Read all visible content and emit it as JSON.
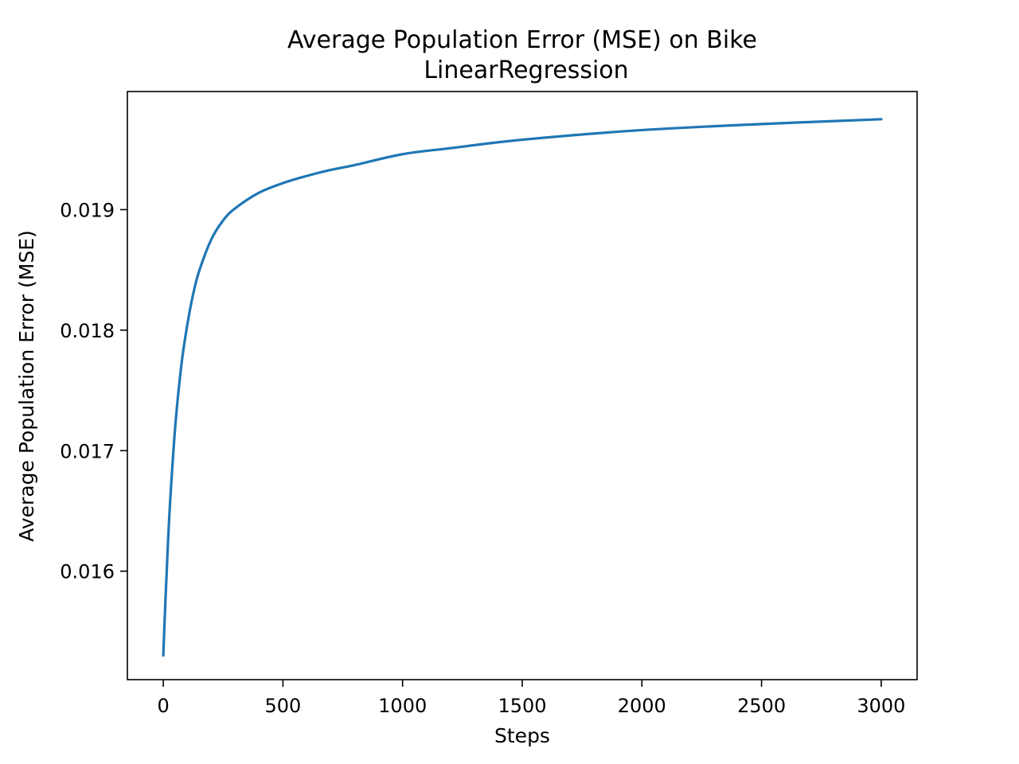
{
  "chart_data": {
    "type": "line",
    "title": "Average Population Error (MSE) on Bike",
    "subtitle": "LinearRegression",
    "xlabel": "Steps",
    "ylabel": "Average Population Error (MSE)",
    "xlim": [
      -150,
      3150
    ],
    "ylim": [
      0.0151,
      0.01998
    ],
    "xticks": [
      0,
      500,
      1000,
      1500,
      2000,
      2500,
      3000
    ],
    "xtick_labels": [
      "0",
      "500",
      "1000",
      "1500",
      "2000",
      "2500",
      "3000"
    ],
    "yticks": [
      0.016,
      0.017,
      0.018,
      0.019
    ],
    "ytick_labels": [
      "0.016",
      "0.017",
      "0.018",
      "0.019"
    ],
    "grid": false,
    "colors": {
      "series": "#1f77b4"
    },
    "series": [
      {
        "x": [
          0,
          10,
          20,
          30,
          50,
          75,
          100,
          125,
          150,
          200,
          250,
          300,
          400,
          500,
          600,
          700,
          800,
          1000,
          1200,
          1500,
          2000,
          2500,
          3000
        ],
        "y": [
          0.0153,
          0.0158,
          0.01625,
          0.01662,
          0.0172,
          0.0177,
          0.01804,
          0.0183,
          0.01849,
          0.01875,
          0.01891,
          0.01901,
          0.01914,
          0.01922,
          0.01928,
          0.01933,
          0.01937,
          0.01946,
          0.01951,
          0.01958,
          0.01966,
          0.01971,
          0.01975
        ]
      }
    ]
  }
}
